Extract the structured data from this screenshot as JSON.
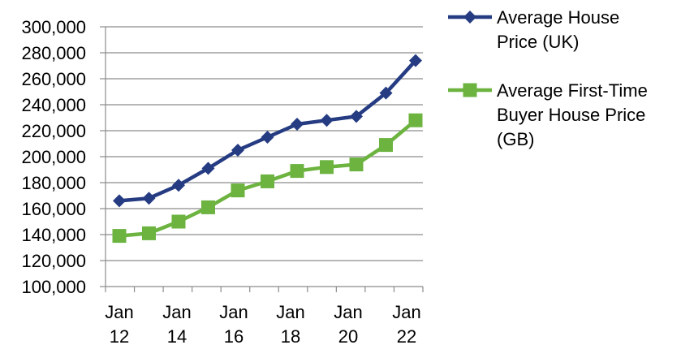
{
  "chart_data": {
    "type": "line",
    "title": "",
    "xlabel": "",
    "ylabel": "",
    "ylim": [
      100000,
      300000
    ],
    "y_ticks": [
      "100,000",
      "120,000",
      "140,000",
      "160,000",
      "180,000",
      "200,000",
      "220,000",
      "240,000",
      "260,000",
      "280,000",
      "300,000"
    ],
    "x_ticks": [
      {
        "month": "Jan",
        "year": "12"
      },
      {
        "month": "Jan",
        "year": "14"
      },
      {
        "month": "Jan",
        "year": "16"
      },
      {
        "month": "Jan",
        "year": "18"
      },
      {
        "month": "Jan",
        "year": "20"
      },
      {
        "month": "Jan",
        "year": "22"
      }
    ],
    "x": [
      "Jan 12",
      "Jan 13",
      "Jan 14",
      "Jan 15",
      "Jan 16",
      "Jan 17",
      "Jan 18",
      "Jan 19",
      "Jan 20",
      "Jan 21",
      "Jan 22"
    ],
    "grid": "horizontal",
    "legend_position": "right",
    "series": [
      {
        "name": "Average House Price (UK)",
        "legend_lines": [
          "Average House",
          "Price (UK)"
        ],
        "color": "#253B82",
        "marker": "diamond",
        "values": [
          166000,
          168000,
          178000,
          191000,
          205000,
          215000,
          225000,
          228000,
          231000,
          249000,
          274000
        ]
      },
      {
        "name": "Average First-Time Buyer House Price (GB)",
        "legend_lines": [
          "Average First-Time",
          "Buyer House Price",
          "(GB)"
        ],
        "color": "#6CB33F",
        "marker": "square",
        "values": [
          139000,
          141000,
          150000,
          161000,
          174000,
          181000,
          189000,
          192000,
          194000,
          209000,
          228000
        ]
      }
    ]
  }
}
